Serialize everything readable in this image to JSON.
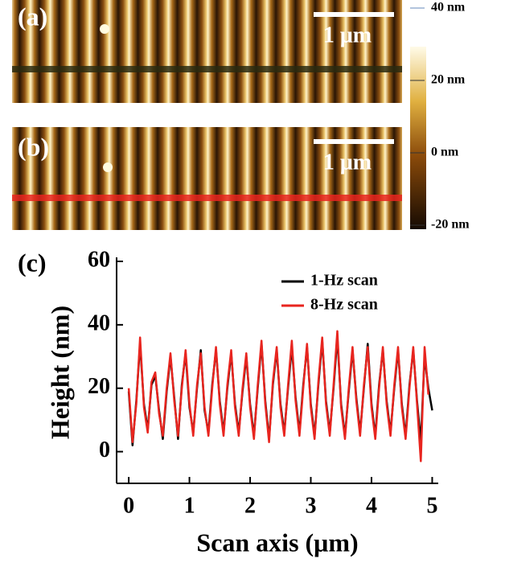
{
  "images": [
    {
      "label": "(a)",
      "scale_bar": "1 μm"
    },
    {
      "label": "(b)",
      "scale_bar": "1 μm"
    }
  ],
  "colorbar": {
    "lim": [
      -20,
      40
    ],
    "ticks": [
      {
        "value": 40,
        "label": "40 nm"
      },
      {
        "value": 20,
        "label": "20 nm"
      },
      {
        "value": 0,
        "label": "0 nm"
      },
      {
        "value": -20,
        "label": "-20 nm"
      }
    ]
  },
  "chart_data": {
    "type": "line",
    "panel_label": "(c)",
    "x_label": "Scan axis (μm)",
    "y_label": "Height (nm)",
    "xlim": [
      -0.2,
      5.1
    ],
    "ylim": [
      -10,
      60
    ],
    "xticks": [
      0,
      1,
      2,
      3,
      4,
      5
    ],
    "yticks": [
      0,
      20,
      40,
      60
    ],
    "legend": "upper right",
    "x": [
      0,
      0.0625,
      0.125,
      0.1875,
      0.25,
      0.3125,
      0.375,
      0.4375,
      0.5,
      0.5625,
      0.625,
      0.6875,
      0.75,
      0.8125,
      0.875,
      0.9375,
      1,
      1.0625,
      1.125,
      1.1875,
      1.25,
      1.3125,
      1.375,
      1.4375,
      1.5,
      1.5625,
      1.625,
      1.6875,
      1.75,
      1.8125,
      1.875,
      1.9375,
      2,
      2.0625,
      2.125,
      2.1875,
      2.25,
      2.3125,
      2.375,
      2.4375,
      2.5,
      2.5625,
      2.625,
      2.6875,
      2.75,
      2.8125,
      2.875,
      2.9375,
      3,
      3.0625,
      3.125,
      3.1875,
      3.25,
      3.3125,
      3.375,
      3.4375,
      3.5,
      3.5625,
      3.625,
      3.6875,
      3.75,
      3.8125,
      3.875,
      3.9375,
      4,
      4.0625,
      4.125,
      4.1875,
      4.25,
      4.3125,
      4.375,
      4.4375,
      4.5,
      4.5625,
      4.625,
      4.6875,
      4.75,
      4.8125,
      4.875,
      4.9375,
      5
    ],
    "series": [
      {
        "name": "1-Hz scan",
        "color": "#000000",
        "values": [
          19,
          2,
          16,
          34,
          15,
          7,
          21,
          24,
          13,
          4,
          19,
          30,
          17,
          4,
          21,
          31,
          14,
          6,
          20,
          32,
          13,
          6,
          21,
          32,
          16,
          6,
          20,
          31,
          15,
          6,
          19,
          30,
          15,
          5,
          20,
          34,
          16,
          4,
          21,
          32,
          15,
          6,
          20,
          33,
          17,
          6,
          21,
          33,
          15,
          5,
          21,
          35,
          16,
          6,
          20,
          36,
          15,
          5,
          19,
          32,
          17,
          6,
          20,
          34,
          15,
          5,
          21,
          32,
          16,
          6,
          20,
          32,
          15,
          5,
          21,
          32,
          16,
          3,
          30,
          20,
          13
        ]
      },
      {
        "name": "8-Hz scan",
        "color": "#e8251f",
        "values": [
          20,
          3,
          15,
          36,
          14,
          6,
          22,
          25,
          12,
          5,
          20,
          31,
          16,
          5,
          20,
          32,
          15,
          5,
          21,
          31,
          14,
          5,
          20,
          33,
          15,
          5,
          21,
          32,
          14,
          5,
          20,
          31,
          14,
          4,
          21,
          35,
          15,
          3,
          22,
          33,
          14,
          5,
          21,
          35,
          16,
          5,
          20,
          34,
          14,
          4,
          22,
          36,
          15,
          5,
          21,
          38,
          14,
          4,
          20,
          33,
          16,
          5,
          21,
          33,
          14,
          4,
          20,
          33,
          15,
          5,
          21,
          33,
          14,
          4,
          20,
          33,
          15,
          -3,
          33,
          18,
          null
        ]
      }
    ]
  }
}
